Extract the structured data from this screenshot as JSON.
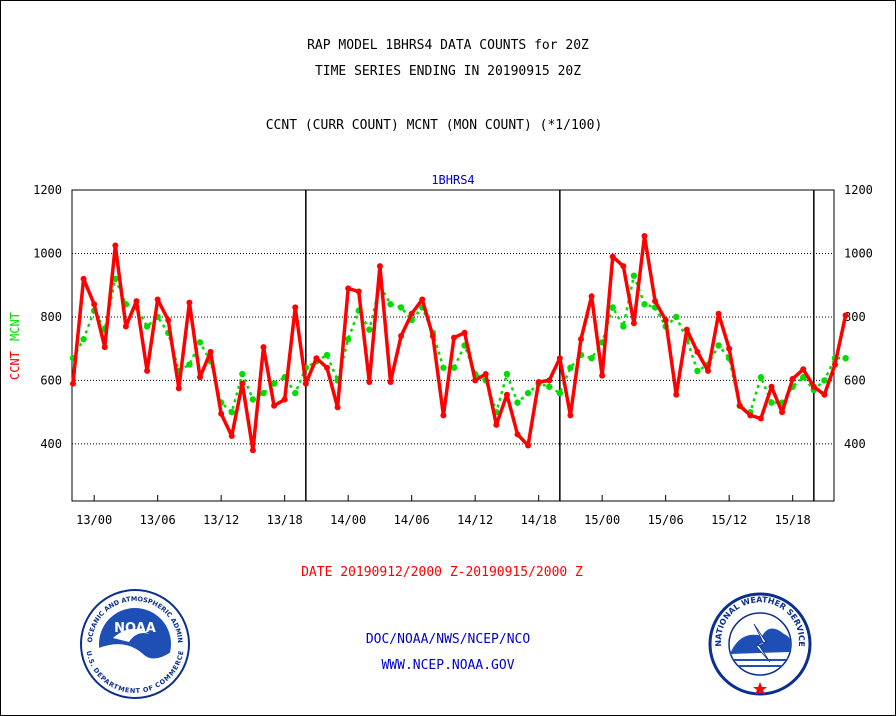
{
  "header": {
    "title_line1": "RAP MODEL 1BHRS4 DATA COUNTS for 20Z",
    "title_line2": "TIME SERIES ENDING IN 20190915 20Z",
    "subtitle": "CCNT (CURR COUNT) MCNT (MON COUNT) (*1/100)"
  },
  "chart_data": {
    "type": "line",
    "title": "1BHRS4",
    "ylabel_ccnt": "CCNT",
    "ylabel_mcnt": "MCNT",
    "ylim": [
      220,
      1200
    ],
    "yticks": [
      400,
      600,
      800,
      1000,
      1200
    ],
    "grid": true,
    "x_start": 0,
    "x_end": 72,
    "x_tick_labels": [
      {
        "x": 2,
        "label": "13/00"
      },
      {
        "x": 8,
        "label": "13/06"
      },
      {
        "x": 14,
        "label": "13/12"
      },
      {
        "x": 20,
        "label": "13/18"
      },
      {
        "x": 26,
        "label": "14/00"
      },
      {
        "x": 32,
        "label": "14/06"
      },
      {
        "x": 38,
        "label": "14/12"
      },
      {
        "x": 44,
        "label": "14/18"
      },
      {
        "x": 50,
        "label": "15/00"
      },
      {
        "x": 56,
        "label": "15/06"
      },
      {
        "x": 62,
        "label": "15/12"
      },
      {
        "x": 68,
        "label": "15/18"
      }
    ],
    "day_separators": [
      22,
      46,
      70
    ],
    "series": [
      {
        "name": "CCNT",
        "color": "#ff0000",
        "values": [
          590,
          920,
          840,
          705,
          1025,
          770,
          850,
          630,
          855,
          790,
          575,
          845,
          610,
          690,
          495,
          425,
          590,
          380,
          705,
          520,
          540,
          830,
          590,
          670,
          640,
          515,
          890,
          880,
          595,
          960,
          595,
          740,
          810,
          855,
          740,
          490,
          735,
          750,
          600,
          620,
          460,
          555,
          430,
          395,
          595,
          600,
          670,
          490,
          730,
          865,
          615,
          990,
          960,
          780,
          1055,
          850,
          790,
          555,
          760,
          690,
          630,
          810,
          700,
          520,
          490,
          480,
          580,
          500,
          605,
          635,
          580,
          555,
          650,
          805
        ]
      },
      {
        "name": "MCNT",
        "color": "#00dd00",
        "values": [
          670,
          730,
          820,
          760,
          920,
          840,
          830,
          770,
          800,
          750,
          630,
          650,
          720,
          660,
          530,
          500,
          620,
          540,
          560,
          590,
          610,
          560,
          640,
          660,
          680,
          600,
          730,
          820,
          760,
          900,
          840,
          830,
          790,
          830,
          750,
          640,
          640,
          710,
          620,
          600,
          500,
          620,
          530,
          560,
          590,
          580,
          560,
          640,
          680,
          670,
          720,
          830,
          770,
          930,
          840,
          830,
          770,
          800,
          730,
          630,
          650,
          710,
          670,
          520,
          500,
          610,
          530,
          530,
          580,
          610,
          570,
          600,
          670,
          670
        ]
      }
    ]
  },
  "footer": {
    "date_range": "DATE 20190912/2000 Z-20190915/2000 Z",
    "agency": "DOC/NOAA/NWS/NCEP/NCO",
    "website": "WWW.NCEP.NOAA.GOV"
  },
  "logos": {
    "noaa": {
      "ring_text": "NATIONAL OCEANIC AND ATMOSPHERIC ADMINISTRATION",
      "bottom_text": "U.S. DEPARTMENT OF COMMERCE",
      "center_text": "NOAA"
    },
    "nws": {
      "ring_text": "NATIONAL WEATHER SERVICE"
    }
  }
}
